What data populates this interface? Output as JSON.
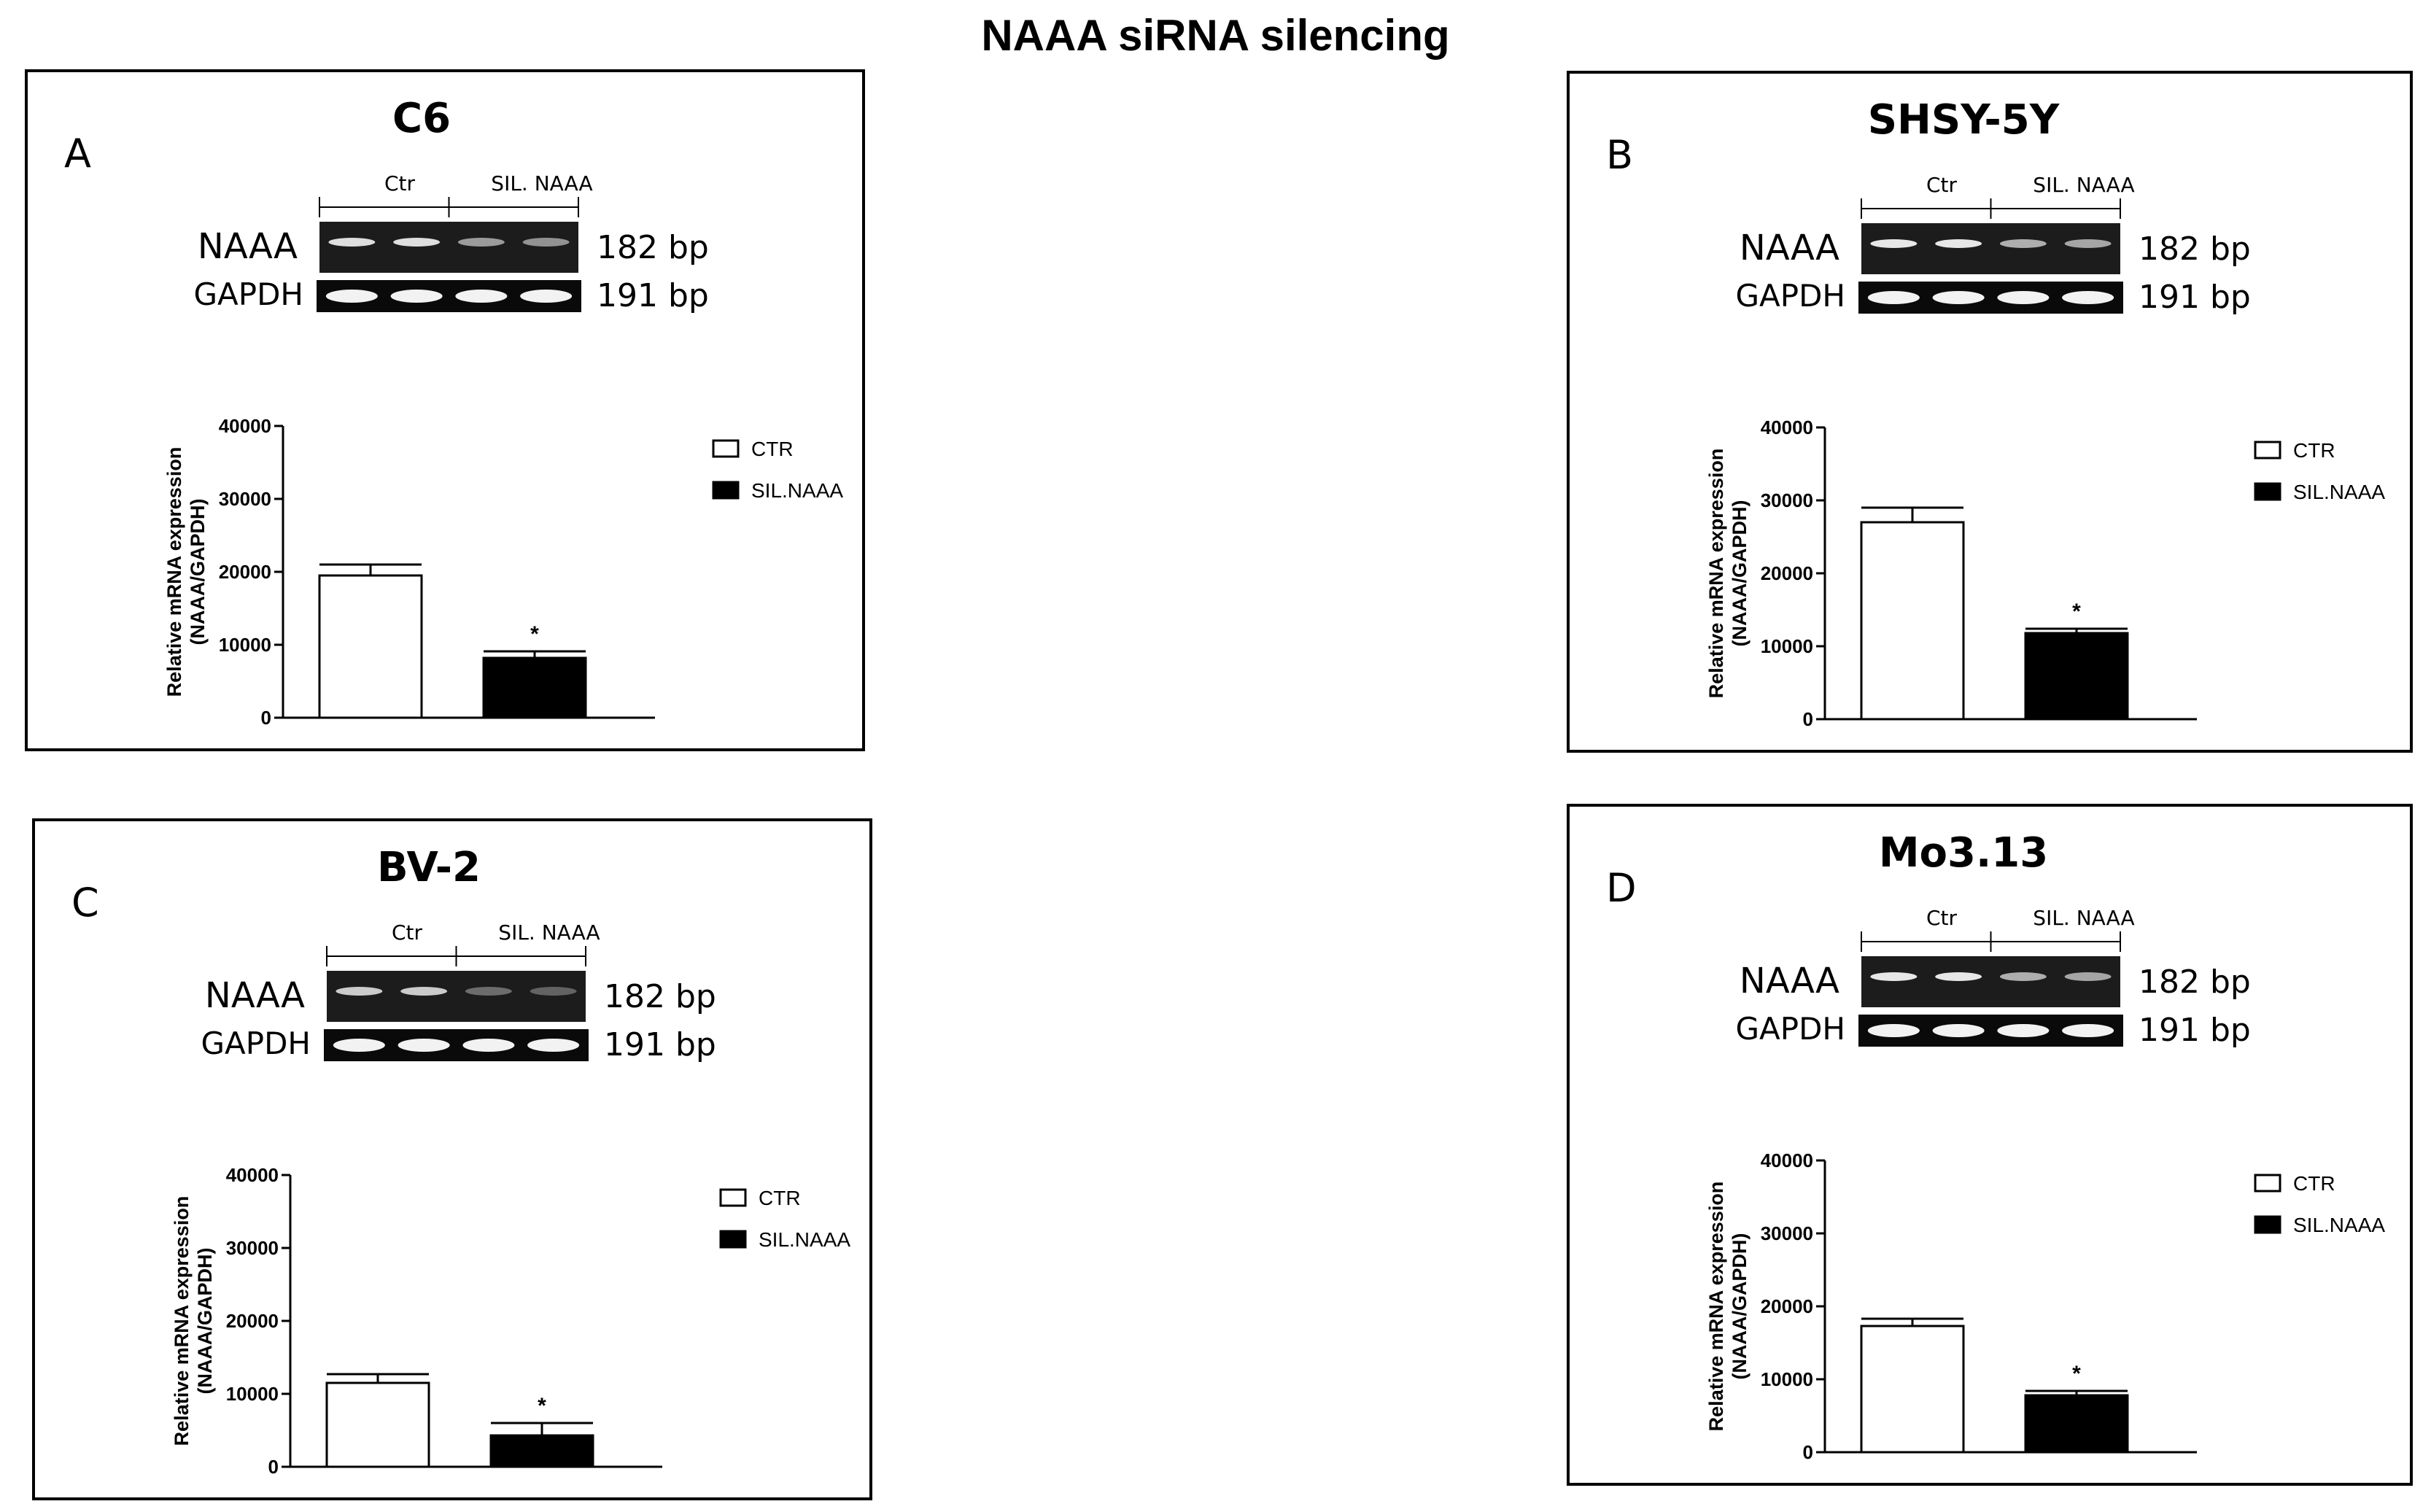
{
  "figure": {
    "title": "NAAA siRNA silencing"
  },
  "panels": [
    {
      "id": "A",
      "letter": "A",
      "cell_line": "C6",
      "gel": {
        "group1": "Ctr",
        "group2": "SIL. NAAA",
        "row1": "NAAA",
        "row2": "GAPDH",
        "size1": "182 bp",
        "size2": "191 bp",
        "naaa_band_intensity": [
          0.85,
          0.85,
          0.5,
          0.45
        ]
      },
      "chart_data": {
        "type": "bar",
        "categories": [
          "CTR",
          "SIL.NAAA"
        ],
        "values": [
          19500,
          8200
        ],
        "errors": [
          1500,
          900
        ],
        "ylabel": "Relative mRNA expression\n(NAAA/GAPDH)",
        "ylim": [
          0,
          40000
        ],
        "yticks": [
          "0",
          "10000",
          "20000",
          "30000",
          "40000"
        ],
        "legend": [
          "CTR",
          "SIL.NAAA"
        ],
        "legend_position": "right",
        "colors": [
          "#ffffff",
          "#000000"
        ],
        "significance": [
          "",
          "*"
        ]
      }
    },
    {
      "id": "B",
      "letter": "B",
      "cell_line": "SHSY-5Y",
      "gel": {
        "group1": "Ctr",
        "group2": "SIL. NAAA",
        "row1": "NAAA",
        "row2": "GAPDH",
        "size1": "182 bp",
        "size2": "191 bp",
        "naaa_band_intensity": [
          0.9,
          0.9,
          0.6,
          0.55
        ]
      },
      "chart_data": {
        "type": "bar",
        "categories": [
          "CTR",
          "SIL.NAAA"
        ],
        "values": [
          27000,
          11800
        ],
        "errors": [
          2000,
          600
        ],
        "ylabel": "Relative mRNA expression\n(NAAA/GAPDH)",
        "ylim": [
          0,
          40000
        ],
        "yticks": [
          "0",
          "10000",
          "20000",
          "30000",
          "40000"
        ],
        "legend": [
          "CTR",
          "SIL.NAAA"
        ],
        "legend_position": "right",
        "colors": [
          "#ffffff",
          "#000000"
        ],
        "significance": [
          "",
          "*"
        ]
      }
    },
    {
      "id": "C",
      "letter": "C",
      "cell_line": "BV-2",
      "gel": {
        "group1": "Ctr",
        "group2": "SIL. NAAA",
        "row1": "NAAA",
        "row2": "GAPDH",
        "size1": "182 bp",
        "size2": "191 bp",
        "naaa_band_intensity": [
          0.75,
          0.75,
          0.25,
          0.2
        ]
      },
      "chart_data": {
        "type": "bar",
        "categories": [
          "CTR",
          "SIL.NAAA"
        ],
        "values": [
          11500,
          4300
        ],
        "errors": [
          1200,
          1700
        ],
        "ylabel": "Relative mRNA expression\n(NAAA/GAPDH)",
        "ylim": [
          0,
          40000
        ],
        "yticks": [
          "0",
          "10000",
          "20000",
          "30000",
          "40000"
        ],
        "legend": [
          "CTR",
          "SIL.NAAA"
        ],
        "legend_position": "right",
        "colors": [
          "#ffffff",
          "#000000"
        ],
        "significance": [
          "",
          "*"
        ]
      }
    },
    {
      "id": "D",
      "letter": "D",
      "cell_line": "Mo3.13",
      "gel": {
        "group1": "Ctr",
        "group2": "SIL. NAAA",
        "row1": "NAAA",
        "row2": "GAPDH",
        "size1": "182 bp",
        "size2": "191 bp",
        "naaa_band_intensity": [
          0.9,
          0.9,
          0.6,
          0.55
        ]
      },
      "chart_data": {
        "type": "bar",
        "categories": [
          "CTR",
          "SIL.NAAA"
        ],
        "values": [
          17300,
          7800
        ],
        "errors": [
          1000,
          600
        ],
        "ylabel": "Relative mRNA expression\n(NAAA/GAPDH)",
        "ylim": [
          0,
          40000
        ],
        "yticks": [
          "0",
          "10000",
          "20000",
          "30000",
          "40000"
        ],
        "legend": [
          "CTR",
          "SIL.NAAA"
        ],
        "legend_position": "right",
        "colors": [
          "#ffffff",
          "#000000"
        ],
        "significance": [
          "",
          "*"
        ]
      }
    }
  ]
}
